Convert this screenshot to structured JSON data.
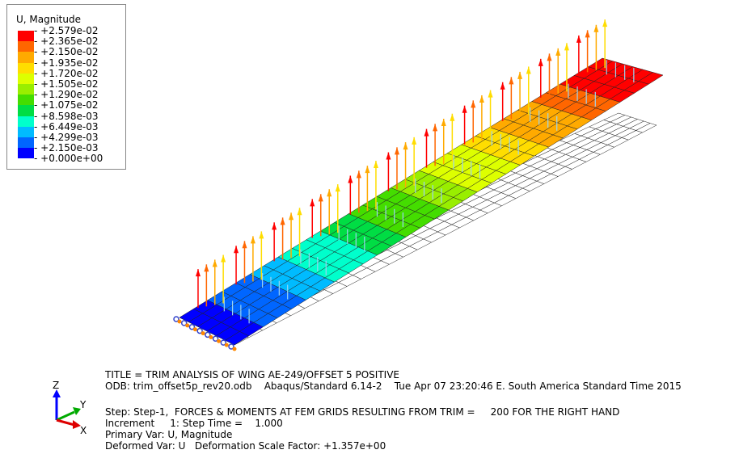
{
  "legend": {
    "title": "U, Magnitude",
    "labels": [
      "+2.579e-02",
      "+2.365e-02",
      "+2.150e-02",
      "+1.935e-02",
      "+1.720e-02",
      "+1.505e-02",
      "+1.290e-02",
      "+1.075e-02",
      "+8.598e-03",
      "+6.449e-03",
      "+4.299e-03",
      "+2.150e-03",
      "+0.000e+00"
    ],
    "colors": [
      "#ff0000",
      "#ff6600",
      "#ffaa00",
      "#ffdd00",
      "#ddff00",
      "#99ee00",
      "#44dd00",
      "#00dd44",
      "#00ffcc",
      "#00bbff",
      "#0066ff",
      "#0000ff"
    ]
  },
  "info": {
    "title": "TITLE = TRIM ANALYSIS OF WING AE-249/OFFSET 5 POSITIVE",
    "odb": "ODB: trim_offset5p_rev20.odb    Abaqus/Standard 6.14-2    Tue Apr 07 23:20:46 E. South America Standard Time 2015",
    "step": "Step: Step-1,  FORCES & MOMENTS AT FEM GRIDS RESULTING FROM TRIM =     200 FOR THE RIGHT HAND",
    "increment": "Increment     1: Step Time =    1.000",
    "primary": "Primary Var: U, Magnitude",
    "deformed": "Deformed Var: U   Deformation Scale Factor: +1.357e+00"
  },
  "triad": {
    "z": "Z",
    "y": "Y",
    "x": "X"
  }
}
